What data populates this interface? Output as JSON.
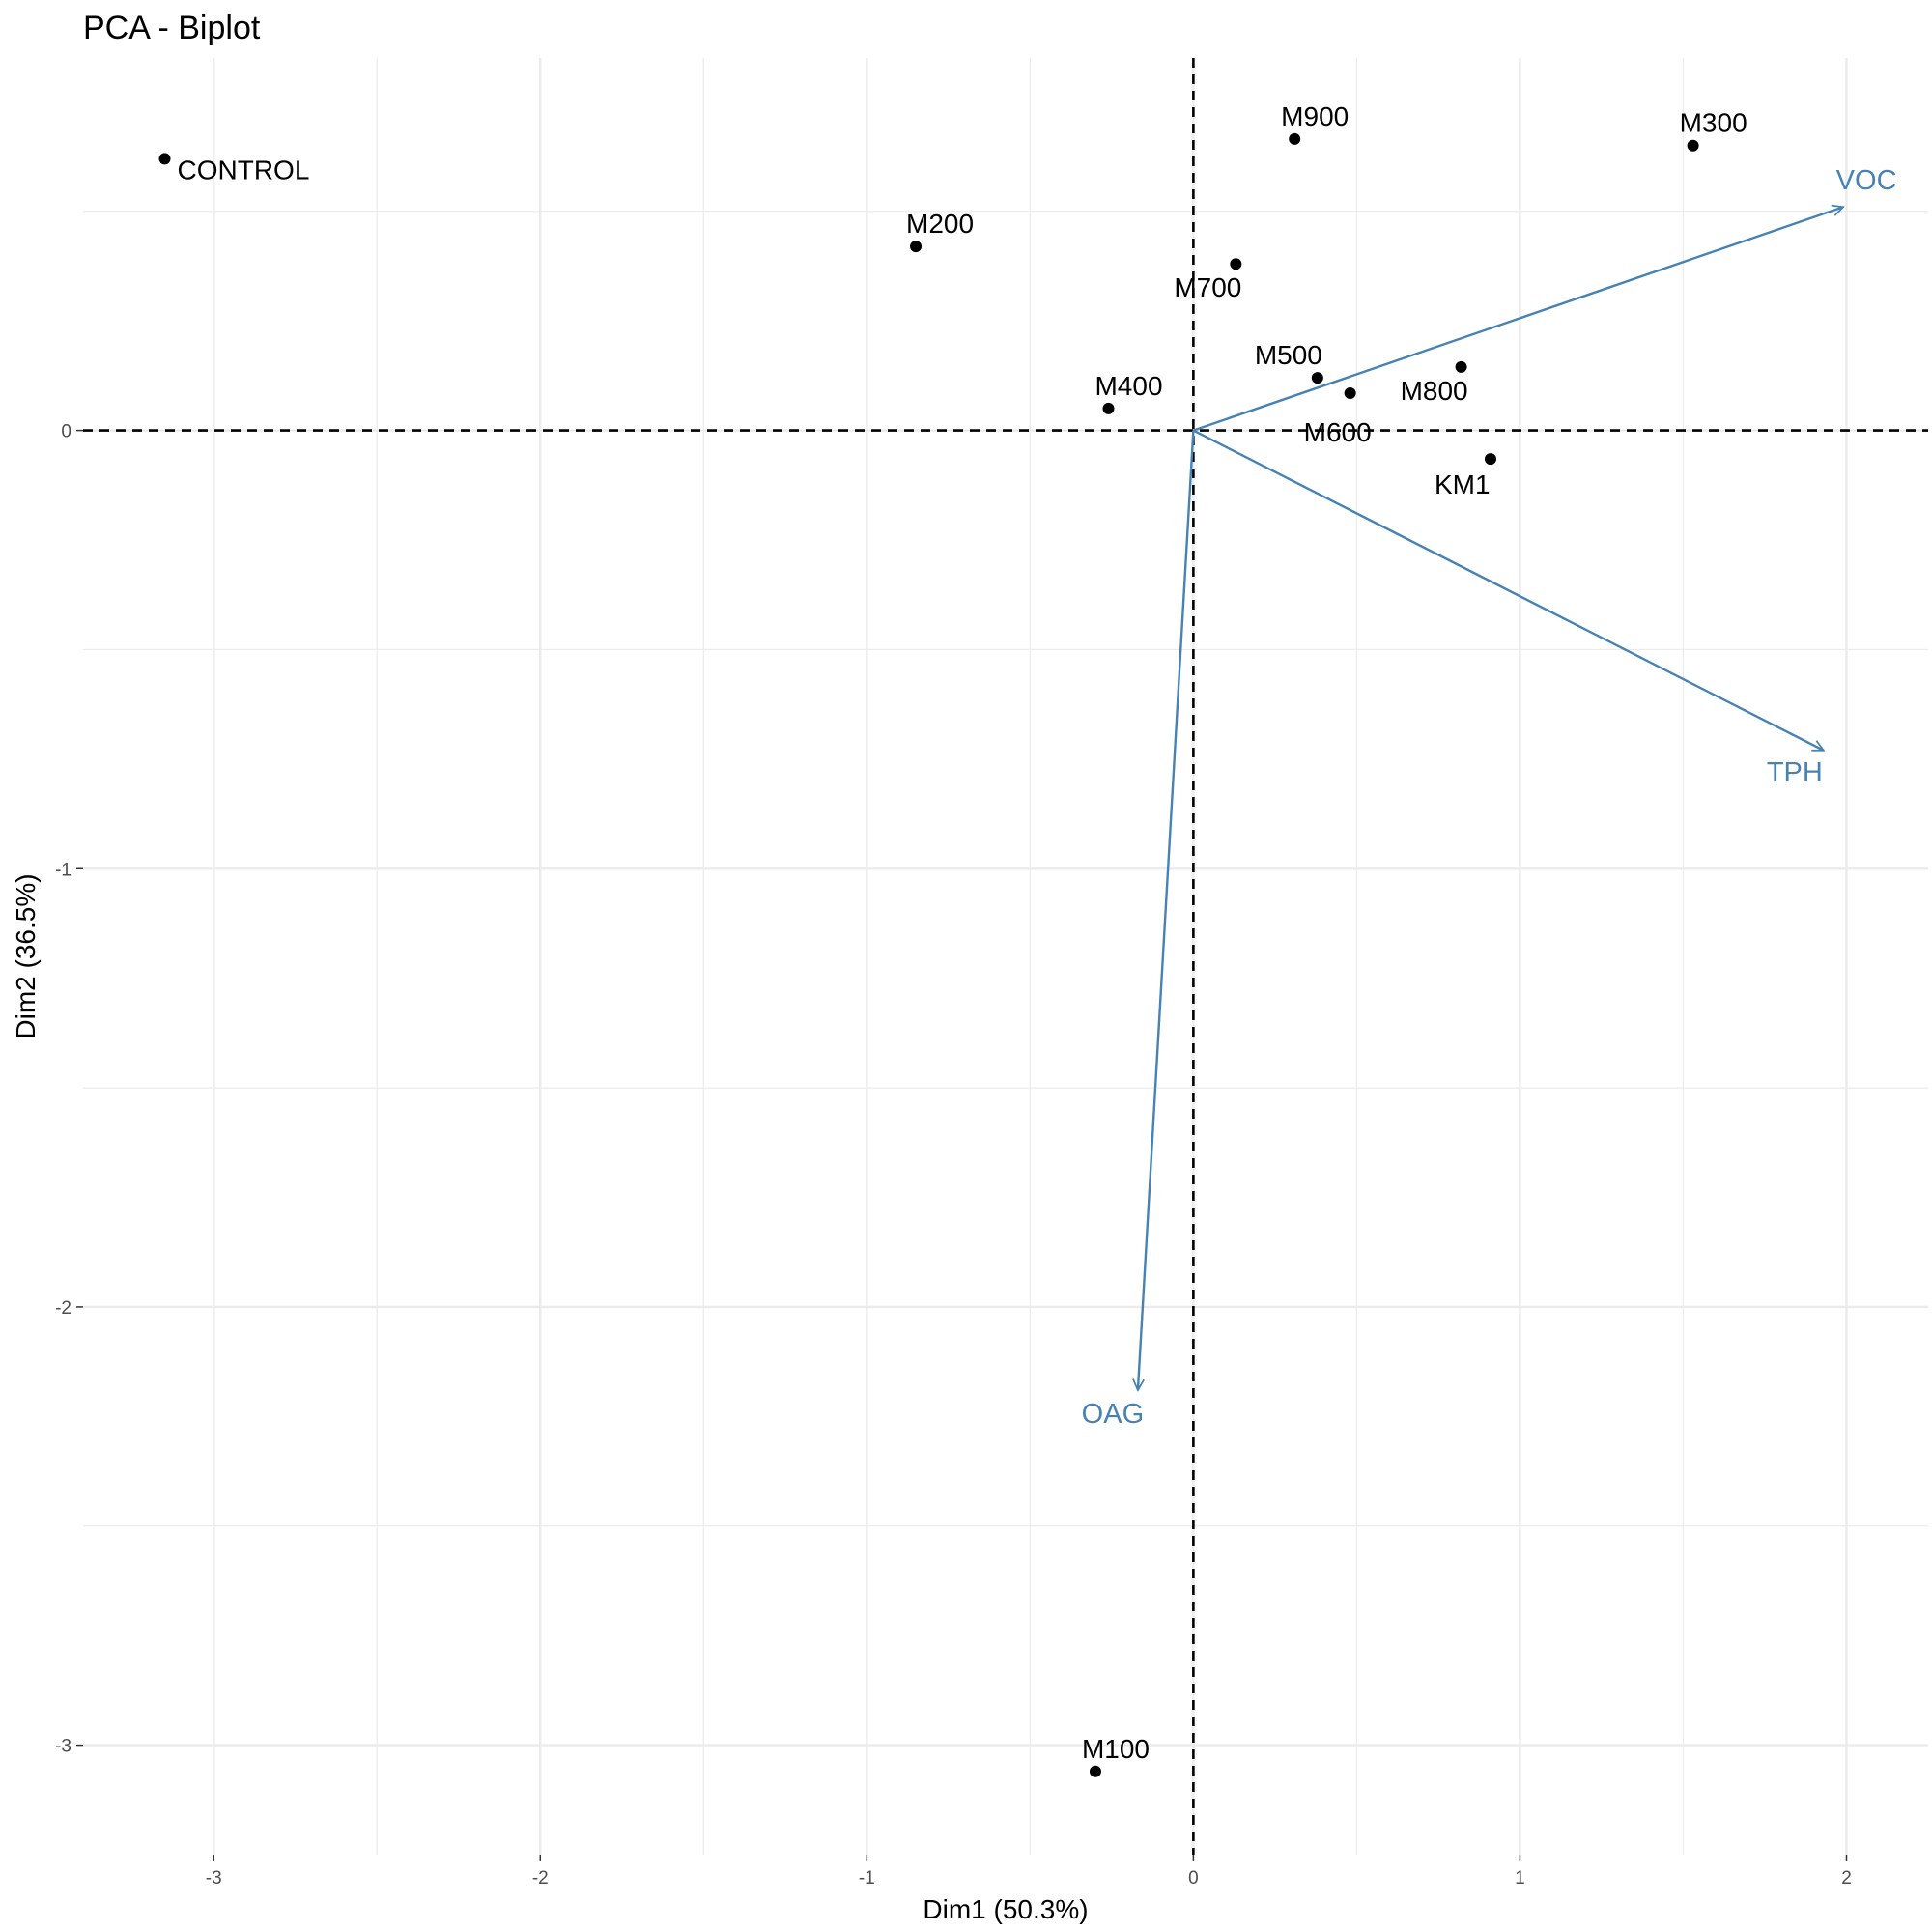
{
  "chart_data": {
    "type": "scatter",
    "title": "PCA - Biplot",
    "xlabel": "Dim1 (50.3%)",
    "ylabel": "Dim2 (36.5%)",
    "xlim": [
      -3.4,
      2.25
    ],
    "ylim": [
      -3.25,
      0.85
    ],
    "x_ticks": [
      -3,
      -2,
      -1,
      0,
      1,
      2
    ],
    "y_ticks": [
      -3,
      -2,
      -1,
      0
    ],
    "grid": true,
    "reference_lines": {
      "x": 0,
      "y": 0,
      "style": "dashed"
    },
    "points": [
      {
        "label": "CONTROL",
        "x": -3.15,
        "y": 0.62
      },
      {
        "label": "M200",
        "x": -0.85,
        "y": 0.42
      },
      {
        "label": "M900",
        "x": 0.31,
        "y": 0.665
      },
      {
        "label": "M300",
        "x": 1.53,
        "y": 0.65
      },
      {
        "label": "M700",
        "x": 0.13,
        "y": 0.38
      },
      {
        "label": "M500",
        "x": 0.38,
        "y": 0.12
      },
      {
        "label": "M800",
        "x": 0.82,
        "y": 0.145
      },
      {
        "label": "M600",
        "x": 0.48,
        "y": 0.085
      },
      {
        "label": "M400",
        "x": -0.26,
        "y": 0.05
      },
      {
        "label": "KM1",
        "x": 0.91,
        "y": -0.065
      },
      {
        "label": "M100",
        "x": -0.3,
        "y": -3.06
      }
    ],
    "variables": [
      {
        "label": "VOC",
        "x": 1.99,
        "y": 0.51
      },
      {
        "label": "TPH",
        "x": 1.93,
        "y": -0.73
      },
      {
        "label": "OAG",
        "x": -0.17,
        "y": -2.19
      }
    ],
    "colors": {
      "points": "#000000",
      "variables": "#4682b4",
      "grid": "#ebebeb",
      "reference": "#000000"
    }
  }
}
